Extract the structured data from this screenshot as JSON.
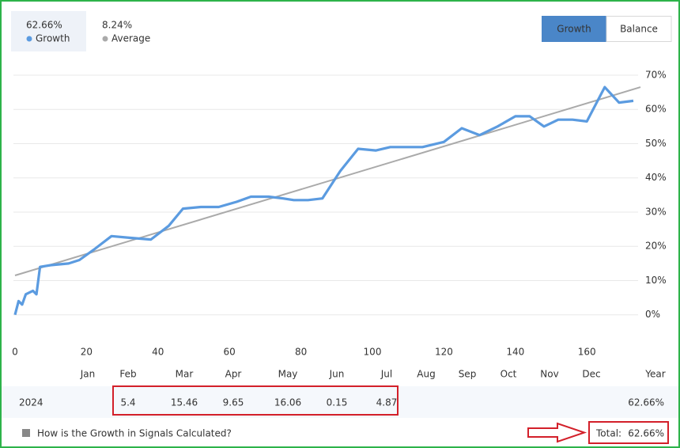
{
  "header": {
    "stats": [
      {
        "value": "62.66%",
        "label": "Growth",
        "color": "#5b9be0"
      },
      {
        "value": "8.24%",
        "label": "Average",
        "color": "#aaaaaa"
      }
    ],
    "tabs": [
      "Growth",
      "Balance"
    ]
  },
  "chart_data": {
    "type": "line",
    "xlim": [
      0,
      175
    ],
    "xticks": [
      0,
      20,
      40,
      60,
      80,
      100,
      120,
      140,
      160
    ],
    "ylim": [
      -7,
      73
    ],
    "yticks": [
      {
        "value": 0,
        "label": "0%"
      },
      {
        "value": 10,
        "label": "10%"
      },
      {
        "value": 20,
        "label": "20%"
      },
      {
        "value": 30,
        "label": "30%"
      },
      {
        "value": 40,
        "label": "40%"
      },
      {
        "value": 50,
        "label": "50%"
      },
      {
        "value": 60,
        "label": "60%"
      },
      {
        "value": 70,
        "label": "70%"
      }
    ],
    "grid": true,
    "series": [
      {
        "color": "#5b9be0",
        "x": [
          0,
          1,
          2,
          3,
          5,
          6,
          7,
          10,
          15,
          18,
          22,
          27,
          32,
          38,
          43,
          47,
          52,
          57,
          62,
          66,
          71,
          75,
          78,
          82,
          86,
          91,
          96,
          101,
          105,
          110,
          114,
          120,
          125,
          130,
          135,
          140,
          144,
          148,
          152,
          156,
          160,
          165,
          169,
          173
        ],
        "values": [
          0,
          4,
          3,
          6,
          7,
          6,
          14,
          14.5,
          15,
          16,
          19,
          23,
          22.5,
          22,
          26,
          31,
          31.5,
          31.5,
          33,
          34.5,
          34.5,
          34,
          33.5,
          33.5,
          34,
          42,
          48.5,
          48,
          49,
          49,
          49,
          50.5,
          54.5,
          52.5,
          55,
          58,
          58,
          55,
          57,
          57,
          56.5,
          66.5,
          62,
          62.5
        ]
      },
      {
        "color": "#aaaaaa",
        "x": [
          0,
          175
        ],
        "values": [
          11.5,
          66.5
        ]
      }
    ]
  },
  "table": {
    "columns": [
      "Jan",
      "Feb",
      "Mar",
      "Apr",
      "May",
      "Jun",
      "Jul",
      "Aug",
      "Sep",
      "Oct",
      "Nov",
      "Dec",
      "Year"
    ],
    "rows": [
      {
        "label": "2024",
        "cells": [
          null,
          "5.4",
          "15.46",
          "9.65",
          "16.06",
          "0.15",
          "4.87",
          null,
          null,
          null,
          null,
          null,
          "62.66%"
        ]
      }
    ]
  },
  "footer": {
    "link": "How is the Growth in Signals Calculated?",
    "total_label": "Total:",
    "total_value": "62.66%"
  }
}
